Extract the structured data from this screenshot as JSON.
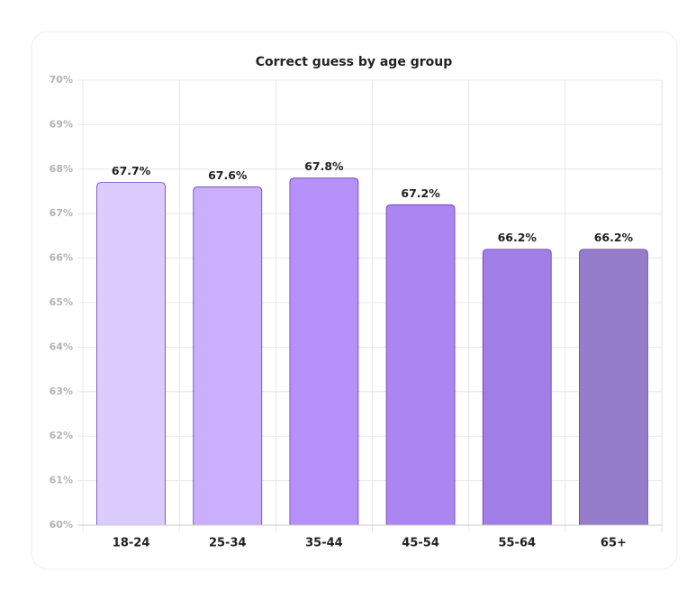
{
  "chart_data": {
    "type": "bar",
    "title": "Correct guess by age group",
    "categories": [
      "18-24",
      "25-34",
      "35-44",
      "45-54",
      "55-64",
      "65+"
    ],
    "values": [
      67.7,
      67.6,
      67.8,
      67.2,
      66.2,
      66.2
    ],
    "value_labels": [
      "67.7%",
      "67.6%",
      "67.8%",
      "67.2%",
      "66.2%",
      "66.2%"
    ],
    "colors": [
      "#dccbfd",
      "#c9affc",
      "#b591f9",
      "#ab85f2",
      "#a07ee6",
      "#957dc9"
    ],
    "ylim": [
      60,
      70
    ],
    "yticks": [
      {
        "value": 60,
        "label": "60%"
      },
      {
        "value": 61,
        "label": "61%"
      },
      {
        "value": 62,
        "label": "62%"
      },
      {
        "value": 63,
        "label": "63%"
      },
      {
        "value": 64,
        "label": "64%"
      },
      {
        "value": 65,
        "label": "65%"
      },
      {
        "value": 66,
        "label": "66%"
      },
      {
        "value": 67,
        "label": "67%"
      },
      {
        "value": 68,
        "label": "68%"
      },
      {
        "value": 69,
        "label": "69%"
      },
      {
        "value": 70,
        "label": "70%"
      }
    ],
    "grid": true
  }
}
